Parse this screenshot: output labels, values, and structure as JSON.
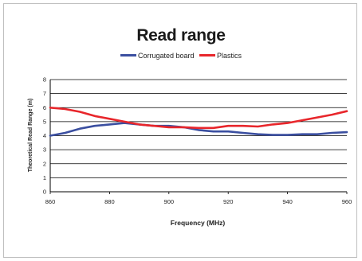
{
  "chart_data": {
    "type": "line",
    "title": "Read range",
    "xlabel": "Frequency (MHz)",
    "ylabel": "Theoretical Read Range (m)",
    "xlim": [
      860,
      960
    ],
    "ylim": [
      0,
      8
    ],
    "x_ticks": [
      "860",
      "880",
      "900",
      "920",
      "940",
      "960"
    ],
    "y_ticks": [
      "0",
      "1",
      "2",
      "3",
      "4",
      "5",
      "6",
      "7",
      "8"
    ],
    "grid": true,
    "legend_position": "top-center",
    "series": [
      {
        "name": "Corrugated board",
        "color": "#3b4fa0",
        "x": [
          860,
          865,
          870,
          875,
          880,
          885,
          890,
          895,
          900,
          905,
          910,
          915,
          920,
          925,
          930,
          935,
          940,
          945,
          950,
          955,
          960
        ],
        "y": [
          4.0,
          4.2,
          4.5,
          4.7,
          4.8,
          4.9,
          4.8,
          4.7,
          4.7,
          4.6,
          4.4,
          4.3,
          4.3,
          4.2,
          4.1,
          4.05,
          4.05,
          4.1,
          4.1,
          4.2,
          4.25
        ]
      },
      {
        "name": "Plastics",
        "color": "#e8262b",
        "x": [
          860,
          865,
          870,
          875,
          880,
          885,
          890,
          895,
          900,
          905,
          910,
          915,
          920,
          925,
          930,
          935,
          940,
          945,
          950,
          955,
          960
        ],
        "y": [
          6.0,
          5.9,
          5.7,
          5.4,
          5.2,
          5.0,
          4.8,
          4.7,
          4.6,
          4.6,
          4.55,
          4.55,
          4.7,
          4.7,
          4.65,
          4.8,
          4.9,
          5.1,
          5.3,
          5.5,
          5.75
        ]
      }
    ]
  }
}
